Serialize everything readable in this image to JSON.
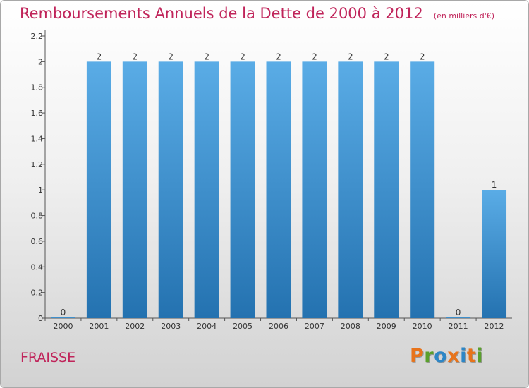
{
  "header": {
    "title": "Remboursements Annuels de la Dette de 2000 à 2012",
    "unit": "(en milliers d'€)"
  },
  "footer": {
    "commune": "FRAISSE",
    "logo_letters": [
      "P",
      "r",
      "o",
      "x",
      "i",
      "t",
      "i"
    ],
    "logo_colors": [
      "#e8731a",
      "#5aa02c",
      "#2d86c6",
      "#e8731a",
      "#2d86c6",
      "#e8731a",
      "#5aa02c"
    ]
  },
  "chart_data": {
    "type": "bar",
    "title": "Remboursements Annuels de la Dette de 2000 à 2012",
    "categories": [
      "2000",
      "2001",
      "2002",
      "2003",
      "2004",
      "2005",
      "2006",
      "2007",
      "2008",
      "2009",
      "2010",
      "2011",
      "2012"
    ],
    "values": [
      0,
      2,
      2,
      2,
      2,
      2,
      2,
      2,
      2,
      2,
      2,
      0,
      1
    ],
    "data_labels": [
      "0",
      "2",
      "2",
      "2",
      "2",
      "2",
      "2",
      "2",
      "2",
      "2",
      "2",
      "0",
      "1"
    ],
    "y_ticks": [
      0,
      0.2,
      0.4,
      0.6,
      0.8,
      1,
      1.2,
      1.4,
      1.6,
      1.8,
      2,
      2.2
    ],
    "y_tick_labels": [
      "0",
      "0.2",
      "0.4",
      "0.6",
      "0.8",
      "1",
      "1.2",
      "1.4",
      "1.6",
      "1.8",
      "2",
      "2.2"
    ],
    "ylim": [
      0,
      2.2
    ],
    "xlabel": "",
    "ylabel": "",
    "grid": false,
    "legend": "none",
    "colors": {
      "bar_top": "#5aace6",
      "bar_bottom": "#2472b0",
      "text": "#c0245a"
    }
  }
}
